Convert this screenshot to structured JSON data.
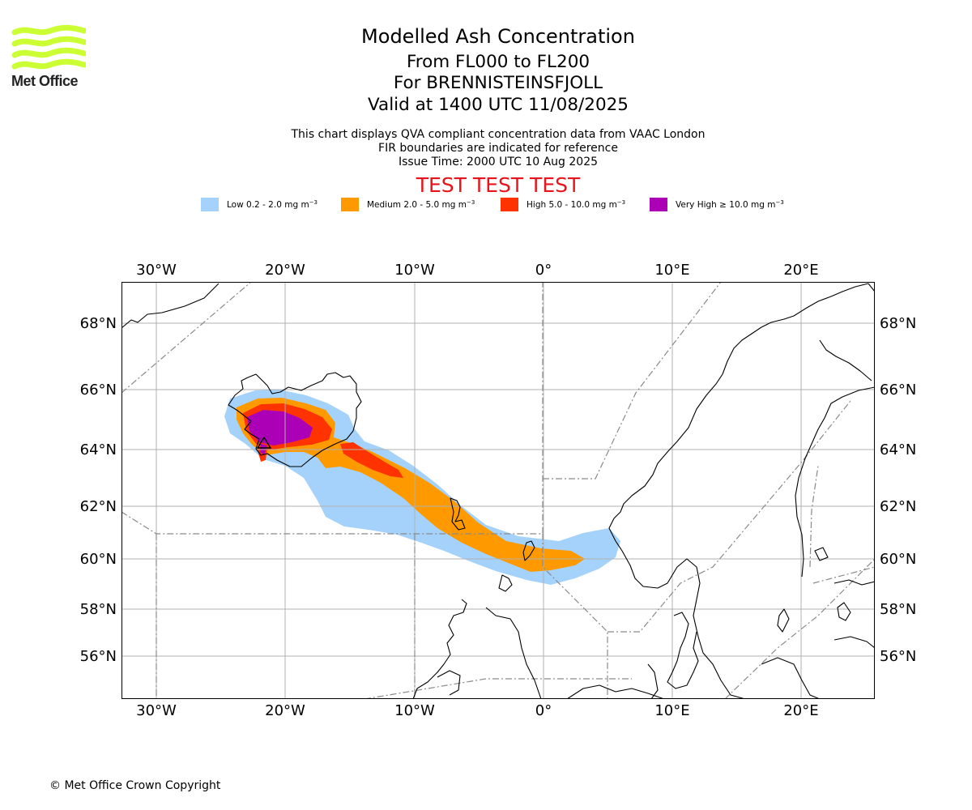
{
  "logo": {
    "text": "Met Office",
    "colors": {
      "waves": "#ccff33"
    }
  },
  "titles": {
    "main": "Modelled Ash Concentration",
    "levels": "From FL000 to FL200",
    "volcano": "For BRENNISTEINSFJOLL",
    "valid": "Valid at 1400 UTC 11/08/2025",
    "sub1": "This chart displays QVA compliant concentration data from VAAC London",
    "sub2": "FIR boundaries are indicated for reference",
    "sub3": "Issue Time: 2000 UTC 10 Aug 2025",
    "test": "TEST TEST TEST"
  },
  "legend": [
    {
      "label": "Low 0.2 - 2.0 mg m",
      "color": "#a4d2fb"
    },
    {
      "label": "Medium 2.0 - 5.0 mg m",
      "color": "#fe9a00"
    },
    {
      "label": "High 5.0 - 10.0 mg m",
      "color": "#ff3300"
    },
    {
      "label": "Very High  ≥  10.0 mg m",
      "color": "#ab00b6"
    }
  ],
  "legend_unit_exponent": "−3",
  "map": {
    "lon_ticks": [
      "30°W",
      "20°W",
      "10°W",
      "0°",
      "10°E",
      "20°E"
    ],
    "lat_ticks": [
      "68°N",
      "66°N",
      "64°N",
      "62°N",
      "60°N",
      "58°N",
      "56°N"
    ],
    "grid": true,
    "fir_boundaries": true,
    "projection": "mercator",
    "lon_range": [
      -33,
      25.5
    ],
    "lat_range": [
      54.5,
      69.5
    ],
    "volcano_location": {
      "lon": -21.8,
      "lat": 63.9
    }
  },
  "copyright": "© Met Office Crown Copyright"
}
